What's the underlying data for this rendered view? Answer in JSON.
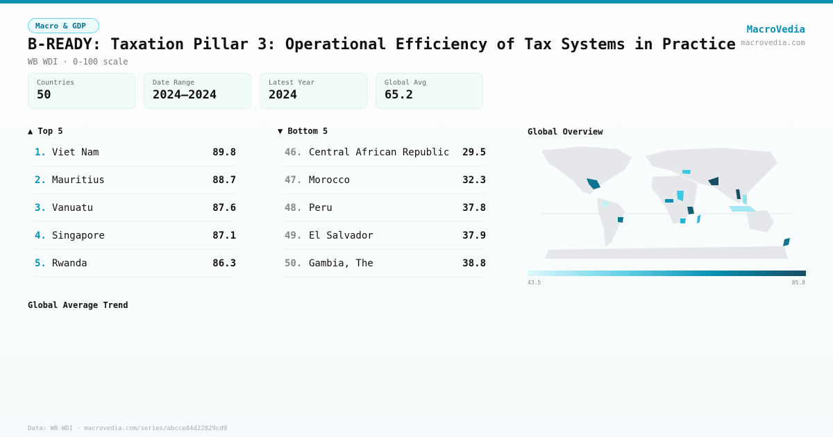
{
  "category": "Macro & GDP",
  "title": "B-READY: Taxation Pillar 3: Operational Efficiency of Tax Systems in Practice",
  "subtitle": "WB WDI · 0-100 scale",
  "brand": {
    "name": "MacroVedia",
    "url": "macrovedia.com"
  },
  "stats": [
    {
      "label": "Countries",
      "value": "50"
    },
    {
      "label": "Date Range",
      "value": "2024–2024"
    },
    {
      "label": "Latest Year",
      "value": "2024"
    },
    {
      "label": "Global Avg",
      "value": "65.2"
    }
  ],
  "top": {
    "heading": "▲ Top 5",
    "items": [
      {
        "rank": "1.",
        "name": "Viet Nam",
        "value": "89.8"
      },
      {
        "rank": "2.",
        "name": "Mauritius",
        "value": "88.7"
      },
      {
        "rank": "3.",
        "name": "Vanuatu",
        "value": "87.6"
      },
      {
        "rank": "4.",
        "name": "Singapore",
        "value": "87.1"
      },
      {
        "rank": "5.",
        "name": "Rwanda",
        "value": "86.3"
      }
    ]
  },
  "bottom": {
    "heading": "▼ Bottom 5",
    "items": [
      {
        "rank": "46.",
        "name": "Central African Republic",
        "value": "29.5"
      },
      {
        "rank": "47.",
        "name": "Morocco",
        "value": "32.3"
      },
      {
        "rank": "48.",
        "name": "Peru",
        "value": "37.8"
      },
      {
        "rank": "49.",
        "name": "El Salvador",
        "value": "37.9"
      },
      {
        "rank": "50.",
        "name": "Gambia, The",
        "value": "38.8"
      }
    ]
  },
  "map": {
    "heading": "Global Overview",
    "scale_min": "43.5",
    "scale_max": "85.8",
    "colors": {
      "low": "#e0f8fc",
      "mid": "#0891b2",
      "high": "#164e63",
      "land": "#e5e7eb"
    }
  },
  "trend": {
    "heading": "Global Average Trend"
  },
  "footer": "Data: WB WDI · macrovedia.com/series/abcce84d22829cd9"
}
